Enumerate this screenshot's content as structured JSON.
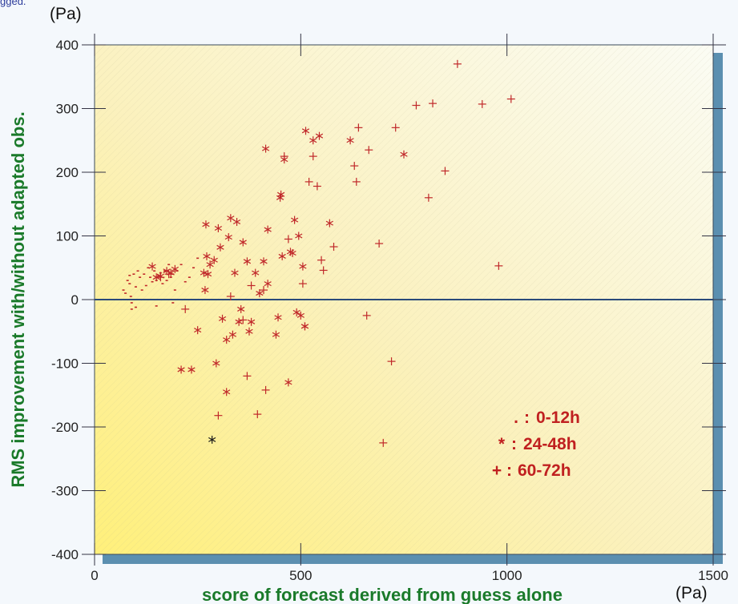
{
  "top_fragment": "gged.",
  "colors": {
    "series": "#c0282a",
    "highlight": "#1a1a1a",
    "axis_title": "#1a7a2a",
    "zero_line": "#2a4a7a",
    "frame_shadow": "#5b8fb0",
    "legend_text": "#c02020"
  },
  "chart_data": {
    "type": "scatter",
    "title": "",
    "xlabel": "score of forecast derived from guess alone",
    "ylabel": "RMS improvement with/without adapted obs.",
    "x_unit": "(Pa)",
    "y_unit": "(Pa)",
    "xlim": [
      0,
      1500
    ],
    "ylim": [
      -400,
      400
    ],
    "x_ticks": [
      "0",
      "500",
      "1000",
      "1500"
    ],
    "x_tick_values": [
      0,
      500,
      1000,
      1500
    ],
    "y_ticks": [
      "400",
      "300",
      "200",
      "100",
      "0",
      "-100",
      "-200",
      "-300",
      "-400"
    ],
    "y_tick_values": [
      400,
      300,
      200,
      100,
      0,
      -100,
      -200,
      -300,
      -400
    ],
    "zero_line": true,
    "legend_position": "bottom-right",
    "legend": [
      {
        "symbol": ".",
        "label": "0-12h"
      },
      {
        "symbol": "*",
        "label": "24-48h"
      },
      {
        "symbol": "+",
        "label": "60-72h"
      }
    ],
    "series": [
      {
        "name": "0-12h",
        "symbol": ".",
        "points": [
          [
            70,
            15
          ],
          [
            75,
            10
          ],
          [
            80,
            30
          ],
          [
            85,
            38
          ],
          [
            85,
            25
          ],
          [
            88,
            5
          ],
          [
            90,
            -5
          ],
          [
            95,
            40
          ],
          [
            100,
            20
          ],
          [
            105,
            45
          ],
          [
            110,
            35
          ],
          [
            115,
            15
          ],
          [
            120,
            40
          ],
          [
            125,
            22
          ],
          [
            130,
            50
          ],
          [
            135,
            35
          ],
          [
            140,
            28
          ],
          [
            145,
            45
          ],
          [
            150,
            30
          ],
          [
            155,
            38
          ],
          [
            160,
            42
          ],
          [
            165,
            25
          ],
          [
            170,
            45
          ],
          [
            175,
            30
          ],
          [
            180,
            55
          ],
          [
            185,
            35
          ],
          [
            190,
            40
          ],
          [
            195,
            15
          ],
          [
            200,
            45
          ],
          [
            210,
            55
          ],
          [
            220,
            28
          ],
          [
            230,
            35
          ],
          [
            240,
            50
          ],
          [
            250,
            65
          ],
          [
            190,
            -5
          ],
          [
            100,
            -12
          ],
          [
            150,
            -10
          ],
          [
            90,
            -15
          ]
        ]
      },
      {
        "name": "24-48h",
        "symbol": "*",
        "points": [
          [
            140,
            52
          ],
          [
            150,
            35
          ],
          [
            160,
            37
          ],
          [
            175,
            45
          ],
          [
            185,
            42
          ],
          [
            195,
            48
          ],
          [
            210,
            -110
          ],
          [
            235,
            -110
          ],
          [
            250,
            -48
          ],
          [
            265,
            42
          ],
          [
            268,
            15
          ],
          [
            270,
            118
          ],
          [
            272,
            68
          ],
          [
            275,
            40
          ],
          [
            280,
            55
          ],
          [
            290,
            62
          ],
          [
            295,
            -100
          ],
          [
            300,
            112
          ],
          [
            305,
            82
          ],
          [
            310,
            -30
          ],
          [
            320,
            -63
          ],
          [
            325,
            98
          ],
          [
            330,
            128
          ],
          [
            335,
            -55
          ],
          [
            340,
            42
          ],
          [
            345,
            122
          ],
          [
            350,
            -35
          ],
          [
            355,
            -15
          ],
          [
            360,
            90
          ],
          [
            320,
            -145
          ],
          [
            370,
            60
          ],
          [
            375,
            -50
          ],
          [
            380,
            -35
          ],
          [
            390,
            42
          ],
          [
            400,
            10
          ],
          [
            410,
            60
          ],
          [
            420,
            25
          ],
          [
            415,
            237
          ],
          [
            440,
            -55
          ],
          [
            445,
            -28
          ],
          [
            450,
            160
          ],
          [
            452,
            165
          ],
          [
            455,
            68
          ],
          [
            460,
            220
          ],
          [
            470,
            -130
          ],
          [
            475,
            75
          ],
          [
            485,
            125
          ],
          [
            490,
            -20
          ],
          [
            495,
            100
          ],
          [
            500,
            -25
          ],
          [
            505,
            52
          ],
          [
            510,
            -42
          ],
          [
            512,
            265
          ],
          [
            530,
            250
          ],
          [
            545,
            257
          ],
          [
            570,
            120
          ],
          [
            620,
            250
          ],
          [
            750,
            228
          ],
          [
            510,
            -42
          ],
          [
            480,
            73
          ],
          [
            420,
            110
          ]
        ]
      },
      {
        "name": "60-72h",
        "symbol": "+",
        "points": [
          [
            160,
            35
          ],
          [
            180,
            40
          ],
          [
            220,
            -15
          ],
          [
            300,
            -182
          ],
          [
            330,
            5
          ],
          [
            360,
            -32
          ],
          [
            370,
            -120
          ],
          [
            380,
            22
          ],
          [
            395,
            -180
          ],
          [
            410,
            15
          ],
          [
            415,
            -142
          ],
          [
            460,
            225
          ],
          [
            470,
            95
          ],
          [
            505,
            25
          ],
          [
            520,
            185
          ],
          [
            530,
            225
          ],
          [
            540,
            178
          ],
          [
            550,
            62
          ],
          [
            555,
            46
          ],
          [
            580,
            83
          ],
          [
            630,
            210
          ],
          [
            635,
            185
          ],
          [
            640,
            270
          ],
          [
            660,
            -25
          ],
          [
            665,
            235
          ],
          [
            690,
            88
          ],
          [
            700,
            -225
          ],
          [
            720,
            -97
          ],
          [
            730,
            270
          ],
          [
            780,
            305
          ],
          [
            810,
            160
          ],
          [
            820,
            308
          ],
          [
            850,
            202
          ],
          [
            880,
            370
          ],
          [
            940,
            307
          ],
          [
            980,
            53
          ],
          [
            1010,
            315
          ]
        ]
      },
      {
        "name": "",
        "symbol": "*",
        "highlight": true,
        "points": [
          [
            285,
            -220
          ]
        ]
      }
    ]
  }
}
